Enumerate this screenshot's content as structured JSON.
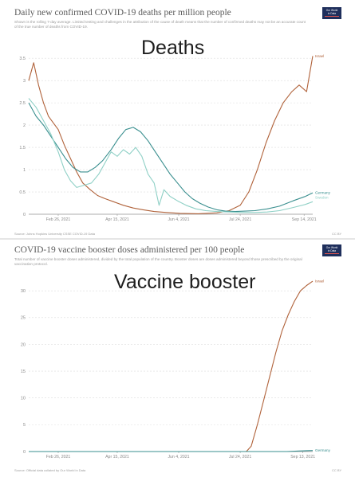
{
  "charts": {
    "deaths": {
      "title": "Daily new confirmed COVID-19 deaths per million people",
      "subtitle": "Shown is the rolling 7-day average. Limited testing and challenges in the attribution of the cause of death means that the number of confirmed deaths may not be an accurate count of the true number of deaths from COVID-19.",
      "overlay_label": "Deaths",
      "source": "Source: Johns Hopkins University CSSE COVID-19 Data",
      "license": "CC BY"
    },
    "booster": {
      "title": "COVID-19 vaccine booster doses administered per 100 people",
      "subtitle": "Total number of vaccine booster doses administered, divided by the total population of the country. Booster doses are doses administered beyond those prescribed by the original vaccination protocol.",
      "overlay_label": "Vaccine booster",
      "source": "Source: Official data collated by Our World in Data",
      "license": "CC BY"
    }
  },
  "logo": {
    "line1": "Our World",
    "line2": "in Data"
  },
  "colors": {
    "israel": "#b0623a",
    "germany": "#3a8f8f",
    "sweden": "#8fd0c6",
    "grid": "#dddddd",
    "axis_text": "#8a8a8a"
  },
  "chart_data": [
    {
      "type": "line",
      "title": "Daily new confirmed COVID-19 deaths per million people",
      "x_ticks": [
        "Feb 26, 2021",
        "Apr 15, 2021",
        "Jun 4, 2021",
        "Jul 24, 2021",
        "Sep 14, 2021"
      ],
      "y_ticks": [
        "0",
        "0.5",
        "1",
        "1.5",
        "2",
        "2.5",
        "3",
        "3.5"
      ],
      "ylim": [
        0,
        3.7
      ],
      "grid": true,
      "legend": "right-end labels",
      "series": [
        {
          "name": "Israel",
          "color_key": "israel",
          "points": [
            [
              "2021-02-02",
              3.0
            ],
            [
              "2021-02-06",
              3.4
            ],
            [
              "2021-02-10",
              2.9
            ],
            [
              "2021-02-14",
              2.5
            ],
            [
              "2021-02-18",
              2.2
            ],
            [
              "2021-02-22",
              2.05
            ],
            [
              "2021-02-26",
              1.9
            ],
            [
              "2021-03-03",
              1.55
            ],
            [
              "2021-03-08",
              1.25
            ],
            [
              "2021-03-13",
              0.95
            ],
            [
              "2021-03-18",
              0.7
            ],
            [
              "2021-03-24",
              0.55
            ],
            [
              "2021-03-30",
              0.42
            ],
            [
              "2021-04-05",
              0.35
            ],
            [
              "2021-04-12",
              0.28
            ],
            [
              "2021-04-20",
              0.2
            ],
            [
              "2021-04-28",
              0.14
            ],
            [
              "2021-05-06",
              0.1
            ],
            [
              "2021-05-15",
              0.06
            ],
            [
              "2021-05-25",
              0.04
            ],
            [
              "2021-06-05",
              0.02
            ],
            [
              "2021-06-20",
              0.01
            ],
            [
              "2021-07-05",
              0.03
            ],
            [
              "2021-07-15",
              0.08
            ],
            [
              "2021-07-24",
              0.2
            ],
            [
              "2021-07-31",
              0.5
            ],
            [
              "2021-08-07",
              1.0
            ],
            [
              "2021-08-14",
              1.6
            ],
            [
              "2021-08-21",
              2.1
            ],
            [
              "2021-08-28",
              2.5
            ],
            [
              "2021-09-04",
              2.75
            ],
            [
              "2021-09-10",
              2.9
            ],
            [
              "2021-09-16",
              2.75
            ],
            [
              "2021-09-21",
              3.55
            ]
          ]
        },
        {
          "name": "Germany",
          "color_key": "germany",
          "points": [
            [
              "2021-02-02",
              2.5
            ],
            [
              "2021-02-08",
              2.2
            ],
            [
              "2021-02-14",
              2.0
            ],
            [
              "2021-02-20",
              1.75
            ],
            [
              "2021-02-26",
              1.5
            ],
            [
              "2021-03-04",
              1.25
            ],
            [
              "2021-03-10",
              1.05
            ],
            [
              "2021-03-16",
              0.95
            ],
            [
              "2021-03-22",
              0.95
            ],
            [
              "2021-03-28",
              1.05
            ],
            [
              "2021-04-03",
              1.2
            ],
            [
              "2021-04-10",
              1.45
            ],
            [
              "2021-04-16",
              1.7
            ],
            [
              "2021-04-22",
              1.9
            ],
            [
              "2021-04-28",
              1.95
            ],
            [
              "2021-05-04",
              1.85
            ],
            [
              "2021-05-10",
              1.65
            ],
            [
              "2021-05-16",
              1.4
            ],
            [
              "2021-05-22",
              1.15
            ],
            [
              "2021-05-28",
              0.9
            ],
            [
              "2021-06-03",
              0.7
            ],
            [
              "2021-06-09",
              0.5
            ],
            [
              "2021-06-15",
              0.35
            ],
            [
              "2021-06-21",
              0.25
            ],
            [
              "2021-06-28",
              0.16
            ],
            [
              "2021-07-05",
              0.1
            ],
            [
              "2021-07-12",
              0.07
            ],
            [
              "2021-07-20",
              0.06
            ],
            [
              "2021-07-28",
              0.07
            ],
            [
              "2021-08-05",
              0.08
            ],
            [
              "2021-08-15",
              0.12
            ],
            [
              "2021-08-25",
              0.18
            ],
            [
              "2021-09-05",
              0.3
            ],
            [
              "2021-09-15",
              0.4
            ],
            [
              "2021-09-21",
              0.48
            ]
          ]
        },
        {
          "name": "Sweden",
          "color_key": "sweden",
          "points": [
            [
              "2021-02-02",
              2.6
            ],
            [
              "2021-02-08",
              2.4
            ],
            [
              "2021-02-14",
              2.1
            ],
            [
              "2021-02-20",
              1.8
            ],
            [
              "2021-02-26",
              1.4
            ],
            [
              "2021-03-03",
              1.0
            ],
            [
              "2021-03-08",
              0.75
            ],
            [
              "2021-03-13",
              0.6
            ],
            [
              "2021-03-19",
              0.65
            ],
            [
              "2021-03-25",
              0.7
            ],
            [
              "2021-03-31",
              0.9
            ],
            [
              "2021-04-06",
              1.2
            ],
            [
              "2021-04-10",
              1.4
            ],
            [
              "2021-04-15",
              1.3
            ],
            [
              "2021-04-20",
              1.45
            ],
            [
              "2021-04-25",
              1.35
            ],
            [
              "2021-04-30",
              1.5
            ],
            [
              "2021-05-05",
              1.3
            ],
            [
              "2021-05-10",
              0.9
            ],
            [
              "2021-05-15",
              0.7
            ],
            [
              "2021-05-19",
              0.2
            ],
            [
              "2021-05-23",
              0.55
            ],
            [
              "2021-05-28",
              0.4
            ],
            [
              "2021-06-03",
              0.3
            ],
            [
              "2021-06-10",
              0.2
            ],
            [
              "2021-06-18",
              0.12
            ],
            [
              "2021-06-26",
              0.08
            ],
            [
              "2021-07-05",
              0.06
            ],
            [
              "2021-07-15",
              0.05
            ],
            [
              "2021-07-25",
              0.04
            ],
            [
              "2021-08-05",
              0.04
            ],
            [
              "2021-08-15",
              0.05
            ],
            [
              "2021-08-25",
              0.08
            ],
            [
              "2021-09-05",
              0.15
            ],
            [
              "2021-09-15",
              0.22
            ],
            [
              "2021-09-21",
              0.28
            ]
          ]
        }
      ]
    },
    {
      "type": "line",
      "title": "COVID-19 vaccine booster doses administered per 100 people",
      "x_ticks": [
        "Feb 26, 2021",
        "Apr 15, 2021",
        "Jun 4, 2021",
        "Jul 24, 2021",
        "Sep 13, 2021"
      ],
      "y_ticks": [
        "0",
        "5",
        "10",
        "15",
        "20",
        "25",
        "30"
      ],
      "ylim": [
        0,
        33
      ],
      "grid": true,
      "legend": "right-end labels",
      "series": [
        {
          "name": "Israel",
          "color_key": "israel",
          "points": [
            [
              "2021-02-02",
              0
            ],
            [
              "2021-07-29",
              0
            ],
            [
              "2021-08-02",
              1.0
            ],
            [
              "2021-08-07",
              5.0
            ],
            [
              "2021-08-12",
              9.5
            ],
            [
              "2021-08-17",
              14.0
            ],
            [
              "2021-08-22",
              18.5
            ],
            [
              "2021-08-27",
              22.5
            ],
            [
              "2021-09-01",
              25.5
            ],
            [
              "2021-09-06",
              28.0
            ],
            [
              "2021-09-11",
              30.0
            ],
            [
              "2021-09-16",
              31.0
            ],
            [
              "2021-09-21",
              31.8
            ]
          ]
        },
        {
          "name": "Germany",
          "color_key": "germany",
          "points": [
            [
              "2021-02-02",
              0
            ],
            [
              "2021-08-31",
              0
            ],
            [
              "2021-09-10",
              0.1
            ],
            [
              "2021-09-21",
              0.2
            ]
          ]
        }
      ]
    }
  ]
}
